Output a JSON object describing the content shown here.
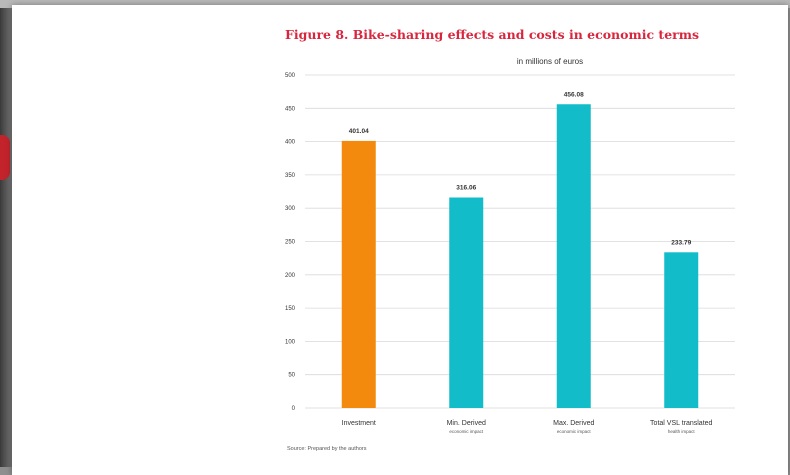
{
  "figure": {
    "title": "Figure 8. Bike-sharing effects and costs in economic terms",
    "source": "Source: Prepared by the authors"
  },
  "chart_data": {
    "type": "bar",
    "title": "",
    "subtitle": "in millions of euros",
    "xlabel": "",
    "ylabel": "",
    "ylim": [
      0,
      500
    ],
    "yticks": [
      0,
      50,
      100,
      150,
      200,
      250,
      300,
      350,
      400,
      450,
      500
    ],
    "grid": true,
    "categories": [
      "Investment",
      "Min. Derived",
      "Max. Derived",
      "Total VSL translated"
    ],
    "category_sublabels": [
      "",
      "economic impact",
      "economic impact",
      "health impact"
    ],
    "values": [
      401.04,
      316.06,
      456.08,
      233.79
    ],
    "value_labels": [
      "401.04",
      "316.06",
      "456.08",
      "233.79"
    ],
    "colors": [
      "#f38a0e",
      "#12bcc8",
      "#12bcc8",
      "#12bcc8"
    ],
    "gridline_color": "#d9d9d9"
  }
}
